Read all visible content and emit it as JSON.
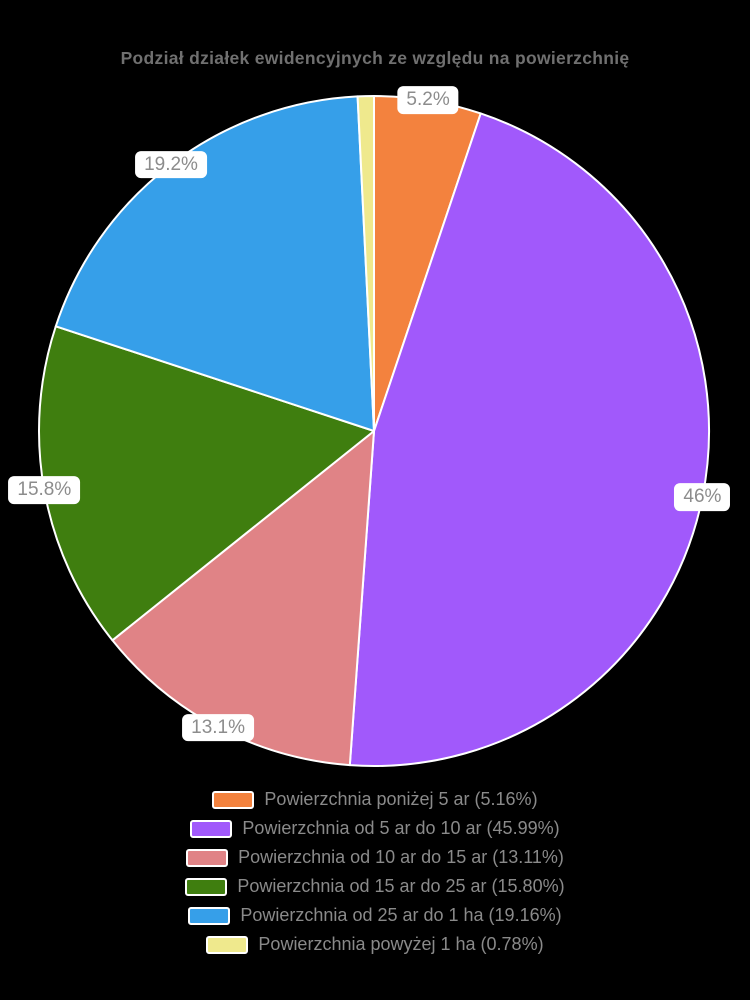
{
  "style": {
    "background": "#000000",
    "title_color": "#707070",
    "label_bg": "#FFFFFF",
    "label_text_color": "#8C8C8C",
    "legend_text_color": "#8A8A8A",
    "slice_border_color": "#FFFFFF",
    "swatch_border_color": "#FFFFFF"
  },
  "chart_data": {
    "type": "pie",
    "title": "Podział działek ewidencyjnych ze względu na powierzchnię",
    "unit": "%",
    "start_angle": "top",
    "direction": "clockwise",
    "legend_position": "bottom",
    "slices": [
      {
        "name": "Powierzchnia poniżej 5 ar",
        "value": 5.16,
        "color": "#F3823E",
        "pie_label": "5.2%",
        "show_label": true,
        "legend_label": "Powierzchnia poniżej 5 ar (5.16%)"
      },
      {
        "name": "Powierzchnia od 5 ar do 10 ar",
        "value": 45.99,
        "color": "#A159FB",
        "pie_label": "46%",
        "show_label": true,
        "legend_label": "Powierzchnia od 5 ar do 10 ar (45.99%)"
      },
      {
        "name": "Powierzchnia od 10 ar do 15 ar",
        "value": 13.11,
        "color": "#E08386",
        "pie_label": "13.1%",
        "show_label": true,
        "legend_label": "Powierzchnia od 10 ar do 15 ar (13.11%)"
      },
      {
        "name": "Powierzchnia od 15 ar do 25 ar",
        "value": 15.8,
        "color": "#3F7E0F",
        "pie_label": "15.8%",
        "show_label": true,
        "legend_label": "Powierzchnia od 15 ar do 25 ar (15.80%)"
      },
      {
        "name": "Powierzchnia od 25 ar do 1 ha",
        "value": 19.16,
        "color": "#369FE9",
        "pie_label": "19.2%",
        "show_label": true,
        "legend_label": "Powierzchnia od 25 ar do 1 ha (19.16%)"
      },
      {
        "name": "Powierzchnia powyżej 1 ha",
        "value": 0.78,
        "color": "#EFE98D",
        "pie_label": null,
        "show_label": false,
        "legend_label": "Powierzchnia powyżej 1 ha (0.78%)"
      }
    ]
  }
}
